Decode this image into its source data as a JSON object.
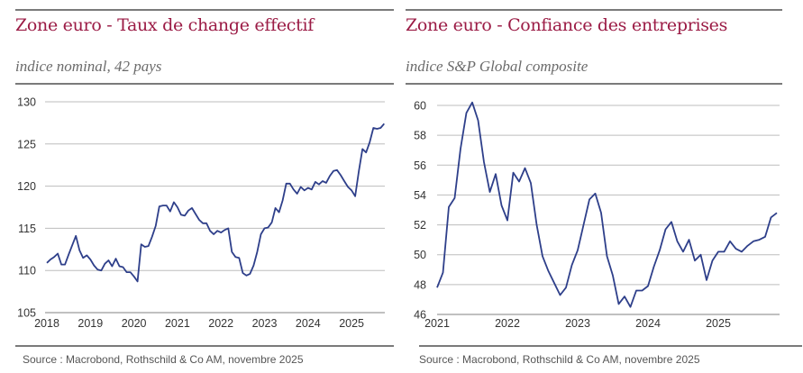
{
  "colors": {
    "title": "#9b1b45",
    "line": "#2e3f8a",
    "grid": "#bdbdbd"
  },
  "chart_data": [
    {
      "type": "line",
      "title": "Zone euro - Taux de change effectif",
      "subtitle": "indice nominal, 42 pays",
      "source": "Source : Macrobond, Rothschild & Co AM, novembre 2025",
      "frequency": "monthly",
      "start": "2018-01",
      "xlim": [
        2018,
        2025.8
      ],
      "ylim": [
        105,
        130
      ],
      "grid": true,
      "xticks": [
        "2018",
        "2019",
        "2020",
        "2021",
        "2022",
        "2023",
        "2024",
        "2025"
      ],
      "yticks": [
        "105",
        "110",
        "115",
        "120",
        "125",
        "130"
      ],
      "values": [
        110.9,
        111.3,
        111.6,
        112.0,
        110.7,
        110.7,
        111.9,
        113.0,
        114.1,
        112.4,
        111.5,
        111.8,
        111.3,
        110.6,
        110.1,
        110.0,
        110.8,
        111.2,
        110.5,
        111.4,
        110.5,
        110.4,
        109.8,
        109.8,
        109.3,
        108.7,
        113.1,
        112.8,
        112.9,
        114.0,
        115.3,
        117.6,
        117.7,
        117.7,
        117.0,
        118.1,
        117.5,
        116.6,
        116.5,
        117.1,
        117.4,
        116.7,
        116.0,
        115.6,
        115.6,
        114.7,
        114.3,
        114.7,
        114.5,
        114.8,
        115.0,
        112.2,
        111.6,
        111.5,
        109.7,
        109.4,
        109.6,
        110.6,
        112.2,
        114.3,
        115.0,
        115.1,
        115.7,
        117.4,
        116.9,
        118.3,
        120.3,
        120.3,
        119.6,
        119.1,
        119.9,
        119.5,
        119.8,
        119.6,
        120.5,
        120.2,
        120.6,
        120.4,
        121.2,
        121.8,
        121.9,
        121.3,
        120.6,
        119.9,
        119.5,
        118.8,
        121.8,
        124.4,
        124.0,
        125.2,
        126.9,
        126.8,
        126.9,
        127.4
      ]
    },
    {
      "type": "line",
      "title": "Zone euro - Confiance des entreprises",
      "subtitle": "indice S&P Global composite",
      "source": "Source :  Macrobond, Rothschild & Co AM, novembre 2025",
      "frequency": "monthly",
      "start": "2021-01",
      "xlim": [
        2021,
        2025.95
      ],
      "ylim": [
        46,
        60
      ],
      "grid": true,
      "xticks": [
        "2021",
        "2022",
        "2023",
        "2024",
        "2025"
      ],
      "yticks": [
        "46",
        "48",
        "50",
        "52",
        "54",
        "56",
        "58",
        "60"
      ],
      "values": [
        47.8,
        48.8,
        53.2,
        53.8,
        57.1,
        59.5,
        60.2,
        59.0,
        56.2,
        54.2,
        55.4,
        53.3,
        52.3,
        55.5,
        54.9,
        55.8,
        54.8,
        52.0,
        49.9,
        48.9,
        48.1,
        47.3,
        47.8,
        49.3,
        50.3,
        52.0,
        53.7,
        54.1,
        52.8,
        49.9,
        48.6,
        46.7,
        47.2,
        46.5,
        47.6,
        47.6,
        47.9,
        49.2,
        50.3,
        51.7,
        52.2,
        50.9,
        50.2,
        51.0,
        49.6,
        50.0,
        48.3,
        49.6,
        50.2,
        50.2,
        50.9,
        50.4,
        50.2,
        50.6,
        50.9,
        51.0,
        51.2,
        52.5,
        52.8
      ]
    }
  ]
}
